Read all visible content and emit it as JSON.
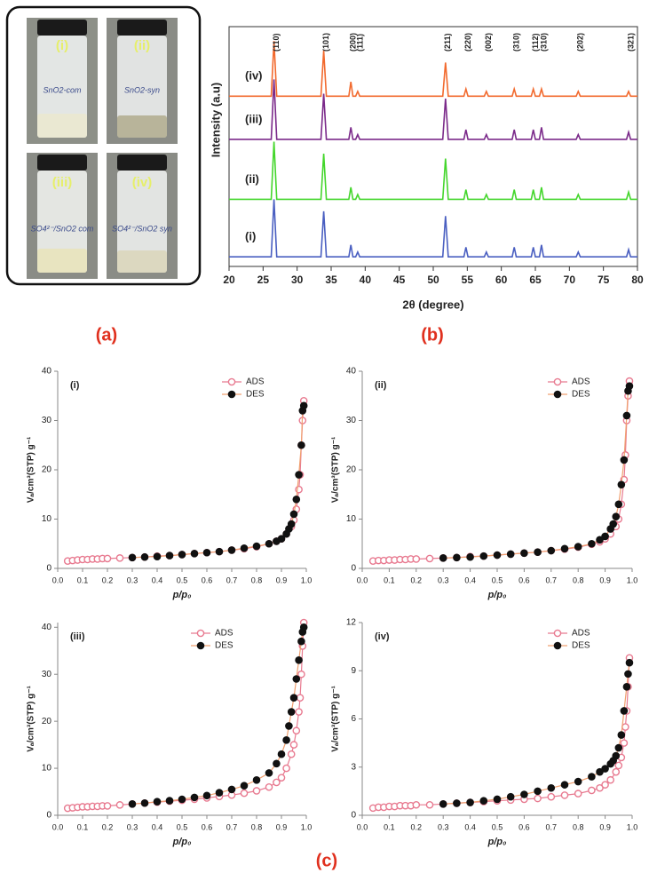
{
  "photo": {
    "vials": [
      {
        "label": "(i)",
        "note": "SnO2-com"
      },
      {
        "label": "(ii)",
        "note": "SnO2-syn"
      },
      {
        "label": "(iii)",
        "note": "SO4²⁻/SnO2 com"
      },
      {
        "label": "(iv)",
        "note": "SO4²⁻/SnO2 syn"
      }
    ]
  },
  "captions": [
    "(a)",
    "(b)",
    "(c)"
  ],
  "chart_data": [
    {
      "type": "line",
      "xlabel": "2θ (degree)",
      "ylabel": "Intensity (a.u)",
      "xlim": [
        20,
        80
      ],
      "xticks": [
        20,
        25,
        30,
        35,
        40,
        45,
        50,
        55,
        60,
        65,
        70,
        75,
        80
      ],
      "ylim": [
        0,
        100
      ],
      "x": [
        20,
        26.2,
        26.6,
        27.0,
        33.5,
        33.9,
        34.3,
        37.6,
        37.9,
        38.2,
        38.6,
        38.9,
        39.2,
        51.4,
        51.8,
        52.2,
        54.5,
        54.8,
        55.1,
        57.5,
        57.8,
        58.1,
        61.6,
        61.9,
        62.2,
        64.4,
        64.7,
        65.0,
        65.6,
        65.9,
        66.2,
        71.0,
        71.3,
        71.6,
        78.4,
        78.7,
        79.0,
        80
      ],
      "series": [
        {
          "name": "(i)",
          "color": "#4a5fc1",
          "values": [
            4,
            4,
            28,
            4,
            4,
            23,
            4,
            4,
            9,
            4,
            4,
            6,
            4,
            4,
            21,
            4,
            4,
            8,
            4,
            4,
            6,
            4,
            4,
            8,
            4,
            4,
            8,
            4,
            4,
            9,
            4,
            4,
            6,
            4,
            4,
            7,
            4,
            4
          ]
        },
        {
          "name": "(ii)",
          "color": "#44d62c",
          "values": [
            28,
            28,
            52,
            28,
            28,
            47,
            28,
            28,
            33,
            28,
            28,
            30,
            28,
            28,
            45,
            28,
            28,
            32,
            28,
            28,
            30,
            28,
            28,
            32,
            28,
            28,
            32,
            28,
            28,
            33,
            28,
            28,
            30,
            28,
            28,
            31,
            28,
            28
          ]
        },
        {
          "name": "(iii)",
          "color": "#7b2a8a",
          "values": [
            53,
            53,
            78,
            53,
            53,
            72,
            53,
            53,
            58,
            53,
            53,
            55,
            53,
            53,
            70,
            53,
            53,
            57,
            53,
            53,
            55,
            53,
            53,
            57,
            53,
            53,
            57,
            53,
            53,
            58,
            53,
            53,
            55,
            53,
            53,
            56,
            53,
            53
          ]
        },
        {
          "name": "(iv)",
          "color": "#f26a2e",
          "values": [
            71,
            71,
            94,
            71,
            71,
            90,
            71,
            71,
            77,
            71,
            71,
            73,
            71,
            71,
            85,
            71,
            71,
            74,
            71,
            71,
            73,
            71,
            71,
            74,
            71,
            71,
            74,
            71,
            71,
            74,
            71,
            71,
            73,
            71,
            71,
            73,
            71,
            71
          ]
        }
      ],
      "annotations": [
        {
          "text": "(110)",
          "x": 26.6
        },
        {
          "text": "(101)",
          "x": 33.9
        },
        {
          "text": "(200)",
          "x": 37.9
        },
        {
          "text": "(111)",
          "x": 38.9
        },
        {
          "text": "(211)",
          "x": 51.8
        },
        {
          "text": "(220)",
          "x": 54.8
        },
        {
          "text": "(002)",
          "x": 57.8
        },
        {
          "text": "(310)",
          "x": 61.9
        },
        {
          "text": "(112)",
          "x": 64.7
        },
        {
          "text": "(310)",
          "x": 65.9
        },
        {
          "text": "(202)",
          "x": 71.3
        },
        {
          "text": "(321)",
          "x": 78.7
        }
      ]
    },
    {
      "type": "scatter",
      "label": "(i)",
      "xlabel": "p/p₀",
      "ylabel": "Vₐ/cm³(STP) g⁻¹",
      "legend": "top-right",
      "xlim": [
        0,
        1
      ],
      "xticks": [
        {
          "value": 0,
          "label": "0.0"
        },
        0.1,
        0.2,
        0.3,
        0.4,
        0.5,
        0.6,
        0.7,
        0.8,
        0.9,
        {
          "value": 1,
          "label": "1.0"
        }
      ],
      "ylim": [
        0,
        40
      ],
      "yticks": [
        0,
        10,
        20,
        30,
        40
      ],
      "series": [
        {
          "name": "ADS",
          "color": "#e87a90",
          "x": [
            0.04,
            0.06,
            0.08,
            0.1,
            0.12,
            0.14,
            0.16,
            0.18,
            0.2,
            0.25,
            0.3,
            0.35,
            0.4,
            0.45,
            0.5,
            0.55,
            0.6,
            0.65,
            0.7,
            0.75,
            0.8,
            0.85,
            0.88,
            0.9,
            0.92,
            0.94,
            0.95,
            0.96,
            0.97,
            0.975,
            0.98,
            0.985,
            0.99
          ],
          "values": [
            1.5,
            1.6,
            1.7,
            1.8,
            1.8,
            1.9,
            1.9,
            2.0,
            2.0,
            2.1,
            2.2,
            2.3,
            2.5,
            2.6,
            2.8,
            3.0,
            3.2,
            3.4,
            3.7,
            4.0,
            4.4,
            5.0,
            5.5,
            6.0,
            7.0,
            8.5,
            9.8,
            12,
            16,
            19,
            25,
            30,
            34
          ]
        },
        {
          "name": "DES",
          "color": "#111111",
          "x": [
            0.99,
            0.985,
            0.98,
            0.97,
            0.96,
            0.95,
            0.94,
            0.93,
            0.92,
            0.9,
            0.88,
            0.85,
            0.8,
            0.75,
            0.7,
            0.65,
            0.6,
            0.55,
            0.5,
            0.45,
            0.4,
            0.35,
            0.3
          ],
          "values": [
            33,
            32,
            25,
            19,
            14,
            11,
            9,
            8,
            7,
            6,
            5.5,
            5,
            4.5,
            4.1,
            3.7,
            3.4,
            3.2,
            3.0,
            2.8,
            2.6,
            2.4,
            2.3,
            2.2
          ]
        }
      ]
    },
    {
      "type": "scatter",
      "label": "(ii)",
      "xlabel": "p/p₀",
      "ylabel": "Vₐ/cm³(STP) g⁻¹",
      "legend": "top-right",
      "xlim": [
        0,
        1
      ],
      "xticks": [
        {
          "value": 0,
          "label": "0.0"
        },
        0.1,
        0.2,
        0.3,
        0.4,
        0.5,
        0.6,
        0.7,
        0.8,
        0.9,
        {
          "value": 1,
          "label": "1.0"
        }
      ],
      "ylim": [
        0,
        40
      ],
      "yticks": [
        0,
        10,
        20,
        30,
        40
      ],
      "series": [
        {
          "name": "ADS",
          "color": "#e87a90",
          "x": [
            0.04,
            0.06,
            0.08,
            0.1,
            0.12,
            0.14,
            0.16,
            0.18,
            0.2,
            0.25,
            0.3,
            0.35,
            0.4,
            0.45,
            0.5,
            0.55,
            0.6,
            0.65,
            0.7,
            0.75,
            0.8,
            0.85,
            0.88,
            0.9,
            0.92,
            0.94,
            0.95,
            0.96,
            0.97,
            0.975,
            0.98,
            0.985,
            0.99
          ],
          "values": [
            1.5,
            1.6,
            1.6,
            1.7,
            1.7,
            1.8,
            1.8,
            1.9,
            1.9,
            2.0,
            2.1,
            2.2,
            2.4,
            2.5,
            2.7,
            2.9,
            3.1,
            3.3,
            3.6,
            3.9,
            4.3,
            4.9,
            5.4,
            6.0,
            7.0,
            8.5,
            10,
            13,
            18,
            23,
            30,
            35,
            38
          ]
        },
        {
          "name": "DES",
          "color": "#111111",
          "x": [
            0.99,
            0.985,
            0.98,
            0.97,
            0.96,
            0.95,
            0.94,
            0.93,
            0.92,
            0.9,
            0.88,
            0.85,
            0.8,
            0.75,
            0.7,
            0.65,
            0.6,
            0.55,
            0.5,
            0.45,
            0.4,
            0.35,
            0.3
          ],
          "values": [
            37,
            36,
            31,
            22,
            17,
            13,
            10.5,
            9,
            8,
            6.5,
            5.8,
            5,
            4.4,
            4.0,
            3.6,
            3.3,
            3.1,
            2.9,
            2.7,
            2.5,
            2.3,
            2.2,
            2.1
          ]
        }
      ]
    },
    {
      "type": "scatter",
      "label": "(iii)",
      "xlabel": "p/p₀",
      "ylabel": "Vₐ/cm³(STP) g⁻¹",
      "legend": "top-left",
      "xlim": [
        0,
        1
      ],
      "xticks": [
        {
          "value": 0,
          "label": "0.0"
        },
        0.1,
        0.2,
        0.3,
        0.4,
        0.5,
        0.6,
        0.7,
        0.8,
        0.9,
        {
          "value": 1,
          "label": "1.0"
        }
      ],
      "ylim": [
        0,
        41
      ],
      "yticks": [
        0,
        10,
        20,
        30,
        40
      ],
      "series": [
        {
          "name": "ADS",
          "color": "#e87a90",
          "x": [
            0.04,
            0.06,
            0.08,
            0.1,
            0.12,
            0.14,
            0.16,
            0.18,
            0.2,
            0.25,
            0.3,
            0.35,
            0.4,
            0.45,
            0.5,
            0.55,
            0.6,
            0.65,
            0.7,
            0.75,
            0.8,
            0.85,
            0.88,
            0.9,
            0.92,
            0.94,
            0.95,
            0.96,
            0.97,
            0.975,
            0.98,
            0.985,
            0.99
          ],
          "values": [
            1.5,
            1.6,
            1.7,
            1.8,
            1.8,
            1.9,
            1.9,
            2.0,
            2.0,
            2.2,
            2.4,
            2.6,
            2.8,
            3.0,
            3.2,
            3.4,
            3.7,
            4.0,
            4.3,
            4.7,
            5.2,
            6,
            7,
            8,
            10,
            13,
            15,
            18,
            22,
            25,
            30,
            36,
            41
          ]
        },
        {
          "name": "DES",
          "color": "#111111",
          "x": [
            0.99,
            0.985,
            0.98,
            0.97,
            0.96,
            0.95,
            0.94,
            0.93,
            0.92,
            0.9,
            0.88,
            0.85,
            0.8,
            0.75,
            0.7,
            0.65,
            0.6,
            0.55,
            0.5,
            0.45,
            0.4,
            0.35,
            0.3
          ],
          "values": [
            40,
            39,
            37,
            33,
            29,
            25,
            22,
            19,
            16,
            13,
            11,
            9,
            7.5,
            6.3,
            5.5,
            4.8,
            4.2,
            3.8,
            3.4,
            3.1,
            2.9,
            2.6,
            2.4
          ]
        }
      ]
    },
    {
      "type": "scatter",
      "label": "(iv)",
      "xlabel": "p/p₀",
      "ylabel": "Vₐ/cm³(STP) g⁻¹",
      "legend": "top-right",
      "xlim": [
        0,
        1
      ],
      "xticks": [
        {
          "value": 0,
          "label": "0.0"
        },
        0.1,
        0.2,
        0.3,
        0.4,
        0.5,
        0.6,
        0.7,
        0.8,
        0.9,
        {
          "value": 1,
          "label": "1.0"
        }
      ],
      "ylim": [
        0,
        12
      ],
      "yticks": [
        0,
        3,
        6,
        9,
        12
      ],
      "series": [
        {
          "name": "ADS",
          "color": "#e87a90",
          "x": [
            0.04,
            0.06,
            0.08,
            0.1,
            0.12,
            0.14,
            0.16,
            0.18,
            0.2,
            0.25,
            0.3,
            0.35,
            0.4,
            0.45,
            0.5,
            0.55,
            0.6,
            0.65,
            0.7,
            0.75,
            0.8,
            0.85,
            0.88,
            0.9,
            0.92,
            0.94,
            0.95,
            0.96,
            0.97,
            0.975,
            0.98,
            0.985,
            0.99
          ],
          "values": [
            0.45,
            0.5,
            0.5,
            0.55,
            0.55,
            0.6,
            0.6,
            0.6,
            0.65,
            0.65,
            0.7,
            0.75,
            0.8,
            0.85,
            0.9,
            0.95,
            1.0,
            1.05,
            1.15,
            1.25,
            1.35,
            1.55,
            1.7,
            1.9,
            2.2,
            2.7,
            3.1,
            3.6,
            4.5,
            5.5,
            6.5,
            8,
            9.8
          ]
        },
        {
          "name": "DES",
          "color": "#111111",
          "x": [
            0.99,
            0.985,
            0.98,
            0.97,
            0.96,
            0.95,
            0.94,
            0.93,
            0.92,
            0.9,
            0.88,
            0.85,
            0.8,
            0.75,
            0.7,
            0.65,
            0.6,
            0.55,
            0.5,
            0.45,
            0.4,
            0.35,
            0.3
          ],
          "values": [
            9.5,
            8.8,
            8.0,
            6.5,
            5.0,
            4.2,
            3.7,
            3.4,
            3.2,
            2.9,
            2.7,
            2.4,
            2.1,
            1.9,
            1.7,
            1.5,
            1.3,
            1.15,
            1.0,
            0.9,
            0.8,
            0.75,
            0.7
          ]
        }
      ]
    }
  ]
}
